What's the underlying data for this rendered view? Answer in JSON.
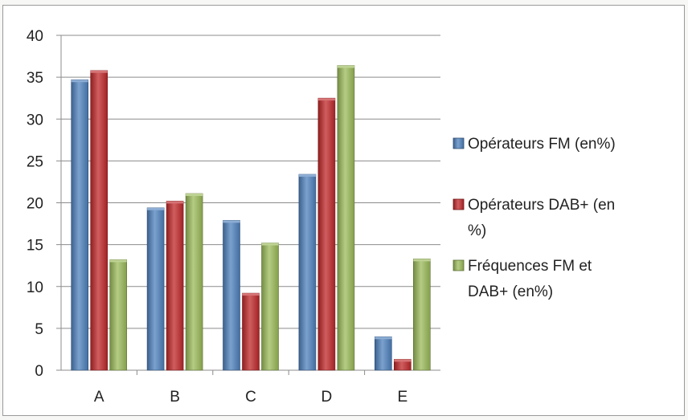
{
  "chart_data": {
    "type": "bar",
    "categories": [
      "A",
      "B",
      "C",
      "D",
      "E"
    ],
    "series": [
      {
        "name": "Opérateurs FM (en%)",
        "values": [
          34.7,
          19.4,
          17.9,
          23.4,
          4.0
        ],
        "color": "#4f81bd"
      },
      {
        "name": "Opérateurs DAB+ (en %)",
        "values": [
          35.8,
          20.2,
          9.2,
          32.5,
          1.3
        ],
        "color": "#c0282a"
      },
      {
        "name": "Fréquences FM et DAB+ (en%)",
        "values": [
          13.2,
          21.1,
          15.2,
          36.4,
          13.3
        ],
        "color": "#9bbb59"
      }
    ],
    "ylim": [
      0,
      40
    ],
    "yticks": [
      "0",
      "5",
      "10",
      "15",
      "20",
      "25",
      "30",
      "35",
      "40"
    ],
    "grid": true,
    "legend_placement": "right"
  },
  "legend_lines": [
    [
      "Opérateurs FM (en%)"
    ],
    [
      "Opérateurs DAB+ (en",
      "%)"
    ],
    [
      "Fréquences FM et",
      "DAB+ (en%)"
    ]
  ]
}
